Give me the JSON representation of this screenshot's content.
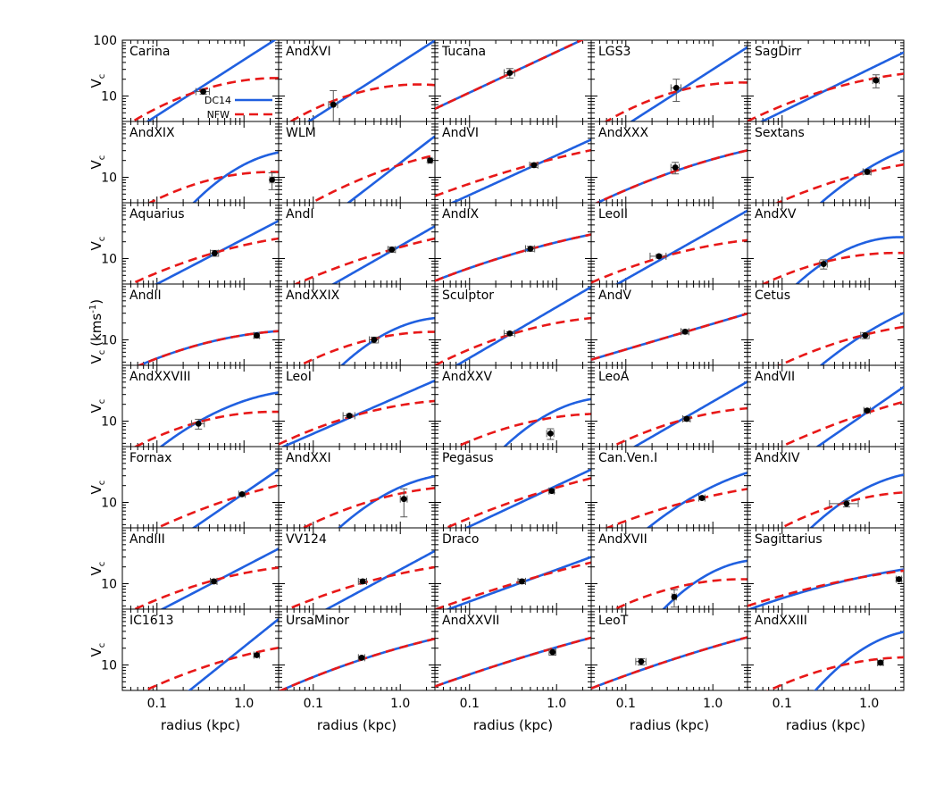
{
  "chart_data": {
    "type": "line",
    "layout": {
      "rows": 8,
      "cols": 5
    },
    "xlabel": "radius (kpc)",
    "ylabel": "V",
    "ylabel_sub": "c",
    "ylabel_long": "V",
    "ylabel_long_sub": "c",
    "ylabel_long_unit": "(kms",
    "ylabel_long_sup": "-1",
    "ylabel_long_close": ")",
    "xscale": "log",
    "yscale": "log",
    "xlim": [
      0.04,
      2.5
    ],
    "ylim": [
      3.5,
      100
    ],
    "xticklabels": [
      "0.1",
      "1.0"
    ],
    "yticklabels_top": [
      "100",
      "10"
    ],
    "yticklabels": [
      "10"
    ],
    "legend": {
      "position": "upper-left panel, middle right",
      "entries": [
        "DC14",
        "NFW"
      ]
    },
    "series_styles": [
      {
        "name": "DC14",
        "color": "#2060e0",
        "style": "solid"
      },
      {
        "name": "NFW",
        "color": "#e81818",
        "style": "dashed"
      }
    ],
    "point_color": "#000000",
    "panels": [
      {
        "name": "Carina",
        "dc14": {
          "a": 13.4,
          "r0": 0.3,
          "m": 1,
          "b": 0
        },
        "nfw": {
          "a": 12.3,
          "r0": 0.3,
          "m": 0.51,
          "b": 0.28
        },
        "point": {
          "r": 0.34,
          "v": 12,
          "xerr": 0.06,
          "yerr": 1.2
        }
      },
      {
        "name": "AndXVI",
        "dc14": {
          "a": 7.9,
          "r0": 0.2,
          "m": 1,
          "b": 0
        },
        "nfw": {
          "a": 9.0,
          "r0": 0.2,
          "m": 0.56,
          "b": 0.31
        },
        "point": {
          "r": 0.17,
          "v": 7.0,
          "xerr": 0.02,
          "yerr": 5.5
        }
      },
      {
        "name": "Tucana",
        "dc14": {
          "a": 25.7,
          "r0": 0.3,
          "m": 0.73,
          "b": 0
        },
        "nfw": {
          "a": 25.7,
          "r0": 0.3,
          "m": 0.73,
          "b": 0
        },
        "point": {
          "r": 0.29,
          "v": 26,
          "xerr": 0.04,
          "yerr": 5
        }
      },
      {
        "name": "LGS3",
        "dc14": {
          "a": 12.0,
          "r0": 0.4,
          "m": 1,
          "b": 0
        },
        "nfw": {
          "a": 12.3,
          "r0": 0.4,
          "m": 0.42,
          "b": 0.29
        },
        "point": {
          "r": 0.38,
          "v": 14,
          "xerr": 0.05,
          "yerr": 6
        }
      },
      {
        "name": "SagDirr",
        "dc14": {
          "a": 17.8,
          "r0": 0.5,
          "m": 0.76,
          "b": 0
        },
        "nfw": {
          "a": 15.5,
          "r0": 0.5,
          "m": 0.41,
          "b": 0.16
        },
        "point": {
          "r": 1.2,
          "v": 19,
          "xerr": 0.1,
          "yerr": 5
        }
      },
      {
        "name": "AndXIX",
        "dc14": {
          "a": 8.4,
          "r0": 0.5,
          "m": 1.2,
          "b": 0.65
        },
        "nfw": {
          "a": 9.7,
          "r0": 0.5,
          "m": 0.35,
          "b": 0.28
        },
        "point": {
          "r": 2.1,
          "v": 9,
          "xerr": 0.12,
          "yerr": 3
        }
      },
      {
        "name": "WLM",
        "dc14": {
          "a": 7.9,
          "r0": 0.5,
          "m": 1.2,
          "b": 0
        },
        "nfw": {
          "a": 11.5,
          "r0": 0.5,
          "m": 0.6,
          "b": 0.17
        },
        "point": {
          "r": 2.2,
          "v": 20,
          "xerr": 0.12,
          "yerr": 1.5
        }
      },
      {
        "name": "AndVI",
        "dc14": {
          "a": 15.1,
          "r0": 0.5,
          "m": 0.71,
          "b": 0
        },
        "nfw": {
          "a": 16.6,
          "r0": 0.5,
          "m": 0.43,
          "b": 0.07
        },
        "point": {
          "r": 0.55,
          "v": 16.5,
          "xerr": 0.06,
          "yerr": 1.5
        }
      },
      {
        "name": "AndXXX",
        "dc14": {
          "a": 13.5,
          "r0": 0.4,
          "m": 0.53,
          "b": 0.11
        },
        "nfw": {
          "a": 13.5,
          "r0": 0.4,
          "m": 0.53,
          "b": 0.11
        },
        "point": {
          "r": 0.37,
          "v": 15,
          "xerr": 0.04,
          "yerr": 3.5
        }
      },
      {
        "name": "Sextans",
        "dc14": {
          "a": 12.0,
          "r0": 0.8,
          "m": 1,
          "b": 0.38
        },
        "nfw": {
          "a": 11.5,
          "r0": 0.8,
          "m": 0.41,
          "b": 0.14
        },
        "point": {
          "r": 0.95,
          "v": 12.5,
          "xerr": 0.1,
          "yerr": 1.2
        }
      },
      {
        "name": "Aquarius",
        "dc14": {
          "a": 12.9,
          "r0": 0.5,
          "m": 0.81,
          "b": 0
        },
        "nfw": {
          "a": 13.2,
          "r0": 0.5,
          "m": 0.44,
          "b": 0.14
        },
        "point": {
          "r": 0.46,
          "v": 12.5,
          "xerr": 0.05,
          "yerr": 1.5
        }
      },
      {
        "name": "AndI",
        "dc14": {
          "a": 13.8,
          "r0": 0.8,
          "m": 0.89,
          "b": 0
        },
        "nfw": {
          "a": 14.5,
          "r0": 0.8,
          "m": 0.45,
          "b": 0.1
        },
        "point": {
          "r": 0.8,
          "v": 14.5,
          "xerr": 0.08,
          "yerr": 1.5
        }
      },
      {
        "name": "AndIX",
        "dc14": {
          "a": 14.8,
          "r0": 0.5,
          "m": 0.43,
          "b": 0.08
        },
        "nfw": {
          "a": 14.8,
          "r0": 0.5,
          "m": 0.43,
          "b": 0.08
        },
        "point": {
          "r": 0.5,
          "v": 15,
          "xerr": 0.06,
          "yerr": 1.5
        }
      },
      {
        "name": "LeoII",
        "dc14": {
          "a": 11.2,
          "r0": 0.3,
          "m": 0.88,
          "b": 0
        },
        "nfw": {
          "a": 11.3,
          "r0": 0.3,
          "m": 0.43,
          "b": 0.14
        },
        "point": {
          "r": 0.24,
          "v": 11,
          "xerr": 0.05,
          "yerr": 0.8
        }
      },
      {
        "name": "AndXV",
        "dc14": {
          "a": 8.4,
          "r0": 0.3,
          "m": 1.05,
          "b": 0.6
        },
        "nfw": {
          "a": 8.6,
          "r0": 0.3,
          "m": 0.4,
          "b": 0.24
        },
        "point": {
          "r": 0.3,
          "v": 8,
          "xerr": 0.03,
          "yerr": 1.5
        }
      },
      {
        "name": "AndII",
        "dc14": {
          "a": 9.9,
          "r0": 0.5,
          "m": 0.35,
          "b": 0.17
        },
        "nfw": {
          "a": 9.9,
          "r0": 0.5,
          "m": 0.35,
          "b": 0.17
        },
        "point": {
          "r": 1.4,
          "v": 12,
          "xerr": 0.1,
          "yerr": 1.2
        }
      },
      {
        "name": "AndXXIX",
        "dc14": {
          "a": 9.8,
          "r0": 0.5,
          "m": 0.99,
          "b": 0.6
        },
        "nfw": {
          "a": 10.5,
          "r0": 0.5,
          "m": 0.35,
          "b": 0.25
        },
        "point": {
          "r": 0.5,
          "v": 10,
          "xerr": 0.06,
          "yerr": 1.2
        }
      },
      {
        "name": "Sculptor",
        "dc14": {
          "a": 12.9,
          "r0": 0.3,
          "m": 0.91,
          "b": 0
        },
        "nfw": {
          "a": 12.6,
          "r0": 0.3,
          "m": 0.48,
          "b": 0.18
        },
        "point": {
          "r": 0.29,
          "v": 13,
          "xerr": 0.04,
          "yerr": 1
        }
      },
      {
        "name": "AndV",
        "dc14": {
          "a": 14.1,
          "r0": 0.5,
          "m": 0.46,
          "b": 0
        },
        "nfw": {
          "a": 14.1,
          "r0": 0.5,
          "m": 0.46,
          "b": 0
        },
        "point": {
          "r": 0.48,
          "v": 14,
          "xerr": 0.05,
          "yerr": 1.2
        }
      },
      {
        "name": "Cetus",
        "dc14": {
          "a": 11.5,
          "r0": 0.8,
          "m": 1,
          "b": 0.3
        },
        "nfw": {
          "a": 11.8,
          "r0": 0.8,
          "m": 0.41,
          "b": 0.17
        },
        "point": {
          "r": 0.9,
          "v": 12,
          "xerr": 0.1,
          "yerr": 1.5
        }
      },
      {
        "name": "AndXXVIII",
        "dc14": {
          "a": 9.8,
          "r0": 0.3,
          "m": 0.89,
          "b": 0.35
        },
        "nfw": {
          "a": 9.6,
          "r0": 0.3,
          "m": 0.43,
          "b": 0.25
        },
        "point": {
          "r": 0.3,
          "v": 9,
          "xerr": 0.05,
          "yerr": 1.8
        }
      },
      {
        "name": "LeoI",
        "dc14": {
          "a": 12.6,
          "r0": 0.3,
          "m": 0.68,
          "b": 0
        },
        "nfw": {
          "a": 12.6,
          "r0": 0.3,
          "m": 0.44,
          "b": 0.17
        },
        "point": {
          "r": 0.26,
          "v": 12.5,
          "xerr": 0.04,
          "yerr": 0.8
        }
      },
      {
        "name": "AndXXV",
        "dc14": {
          "a": 8.4,
          "r0": 0.5,
          "m": 1.1,
          "b": 0.61
        },
        "nfw": {
          "a": 9.7,
          "r0": 0.5,
          "m": 0.35,
          "b": 0.21
        },
        "point": {
          "r": 0.85,
          "v": 6,
          "xerr": 0.08,
          "yerr": 1.3
        }
      },
      {
        "name": "LeoA",
        "dc14": {
          "a": 12.0,
          "r0": 0.5,
          "m": 0.9,
          "b": 0
        },
        "nfw": {
          "a": 11.0,
          "r0": 0.5,
          "m": 0.41,
          "b": 0.2
        },
        "point": {
          "r": 0.5,
          "v": 11,
          "xerr": 0.05,
          "yerr": 1
        }
      },
      {
        "name": "AndVII",
        "dc14": {
          "a": 12.0,
          "r0": 0.8,
          "m": 1.08,
          "b": 0
        },
        "nfw": {
          "a": 12.9,
          "r0": 0.8,
          "m": 0.53,
          "b": 0.1
        },
        "point": {
          "r": 0.95,
          "v": 15.5,
          "xerr": 0.08,
          "yerr": 1.2
        }
      },
      {
        "name": "Fornax",
        "dc14": {
          "a": 11.5,
          "r0": 0.8,
          "m": 1.07,
          "b": 0
        },
        "nfw": {
          "a": 12.3,
          "r0": 0.8,
          "m": 0.5,
          "b": 0.12
        },
        "point": {
          "r": 0.95,
          "v": 14,
          "xerr": 0.08,
          "yerr": 0.8
        }
      },
      {
        "name": "AndXXI",
        "dc14": {
          "a": 10.5,
          "r0": 0.5,
          "m": 0.99,
          "b": 0.5
        },
        "nfw": {
          "a": 11.0,
          "r0": 0.5,
          "m": 0.45,
          "b": 0.2
        },
        "point": {
          "r": 1.1,
          "v": 11.5,
          "xerr": 0.1,
          "yerr": 6
        }
      },
      {
        "name": "Pegasus",
        "dc14": {
          "a": 12.0,
          "r0": 0.5,
          "m": 0.73,
          "b": 0
        },
        "nfw": {
          "a": 13.2,
          "r0": 0.5,
          "m": 0.51,
          "b": 0.09
        },
        "point": {
          "r": 0.88,
          "v": 16,
          "xerr": 0.06,
          "yerr": 1.2
        }
      },
      {
        "name": "Can.Ven.I",
        "dc14": {
          "a": 10.7,
          "r0": 0.5,
          "m": 0.95,
          "b": 0.33
        },
        "nfw": {
          "a": 10.2,
          "r0": 0.5,
          "m": 0.41,
          "b": 0.11
        },
        "point": {
          "r": 0.75,
          "v": 12,
          "xerr": 0.06,
          "yerr": 0.8
        }
      },
      {
        "name": "AndXIV",
        "dc14": {
          "a": 10.2,
          "r0": 0.5,
          "m": 1.07,
          "b": 0.53
        },
        "nfw": {
          "a": 9.7,
          "r0": 0.5,
          "m": 0.45,
          "b": 0.25
        },
        "point": {
          "r": 0.55,
          "v": 9.5,
          "xerr": 0.2,
          "yerr": 1.2
        }
      },
      {
        "name": "AndIII",
        "dc14": {
          "a": 11.5,
          "r0": 0.5,
          "m": 0.81,
          "b": 0
        },
        "nfw": {
          "a": 12.0,
          "r0": 0.5,
          "m": 0.41,
          "b": 0.16
        },
        "point": {
          "r": 0.45,
          "v": 11,
          "xerr": 0.04,
          "yerr": 1
        }
      },
      {
        "name": "VV124",
        "dc14": {
          "a": 10.0,
          "r0": 0.5,
          "m": 0.84,
          "b": 0
        },
        "nfw": {
          "a": 11.7,
          "r0": 0.5,
          "m": 0.41,
          "b": 0.12
        },
        "point": {
          "r": 0.37,
          "v": 11,
          "xerr": 0.04,
          "yerr": 1
        }
      },
      {
        "name": "Draco",
        "dc14": {
          "a": 12.0,
          "r0": 0.5,
          "m": 0.57,
          "b": 0
        },
        "nfw": {
          "a": 12.3,
          "r0": 0.5,
          "m": 0.45,
          "b": 0.05
        },
        "point": {
          "r": 0.4,
          "v": 11,
          "xerr": 0.04,
          "yerr": 1
        }
      },
      {
        "name": "AndXVII",
        "dc14": {
          "a": 8.2,
          "r0": 0.5,
          "m": 1.2,
          "b": 0.7
        },
        "nfw": {
          "a": 9.5,
          "r0": 0.5,
          "m": 0.32,
          "b": 0.25
        },
        "point": {
          "r": 0.36,
          "v": 5.8,
          "xerr": 0.02,
          "yerr": 2
        }
      },
      {
        "name": "Sagittarius",
        "dc14": {
          "a": 11.0,
          "r0": 0.5,
          "m": 0.37,
          "b": 0.09
        },
        "nfw": {
          "a": 11.2,
          "r0": 0.5,
          "m": 0.32,
          "b": 0.08
        },
        "point": {
          "r": 2.2,
          "v": 12,
          "xerr": 0.15,
          "yerr": 0.8
        }
      },
      {
        "name": "IC1613",
        "dc14": {
          "a": 8.9,
          "r0": 0.5,
          "m": 1.25,
          "b": 0
        },
        "nfw": {
          "a": 11.0,
          "r0": 0.5,
          "m": 0.48,
          "b": 0.14
        },
        "point": {
          "r": 1.4,
          "v": 15,
          "xerr": 0.1,
          "yerr": 1
        }
      },
      {
        "name": "UrsaMinor",
        "dc14": {
          "a": 14.8,
          "r0": 0.5,
          "m": 0.49,
          "b": 0.09
        },
        "nfw": {
          "a": 14.8,
          "r0": 0.5,
          "m": 0.49,
          "b": 0.09
        },
        "point": {
          "r": 0.36,
          "v": 13.5,
          "xerr": 0.03,
          "yerr": 0.8
        }
      },
      {
        "name": "AndXXVII",
        "dc14": {
          "a": 15.1,
          "r0": 0.5,
          "m": 0.47,
          "b": 0.04
        },
        "nfw": {
          "a": 15.1,
          "r0": 0.5,
          "m": 0.47,
          "b": 0.04
        },
        "point": {
          "r": 0.9,
          "v": 17,
          "xerr": 0.08,
          "yerr": 2
        }
      },
      {
        "name": "LeoT",
        "dc14": {
          "a": 15.1,
          "r0": 0.5,
          "m": 0.49,
          "b": 0.05
        },
        "nfw": {
          "a": 15.1,
          "r0": 0.5,
          "m": 0.49,
          "b": 0.05
        },
        "point": {
          "r": 0.15,
          "v": 11.5,
          "xerr": 0.02,
          "yerr": 1.5
        }
      },
      {
        "name": "AndXXIII",
        "dc14": {
          "a": 10.6,
          "r0": 0.5,
          "m": 1.3,
          "b": 0.7
        },
        "nfw": {
          "a": 10.0,
          "r0": 0.5,
          "m": 0.35,
          "b": 0.22
        },
        "point": {
          "r": 1.35,
          "v": 11,
          "xerr": 0.1,
          "yerr": 1
        }
      }
    ]
  }
}
